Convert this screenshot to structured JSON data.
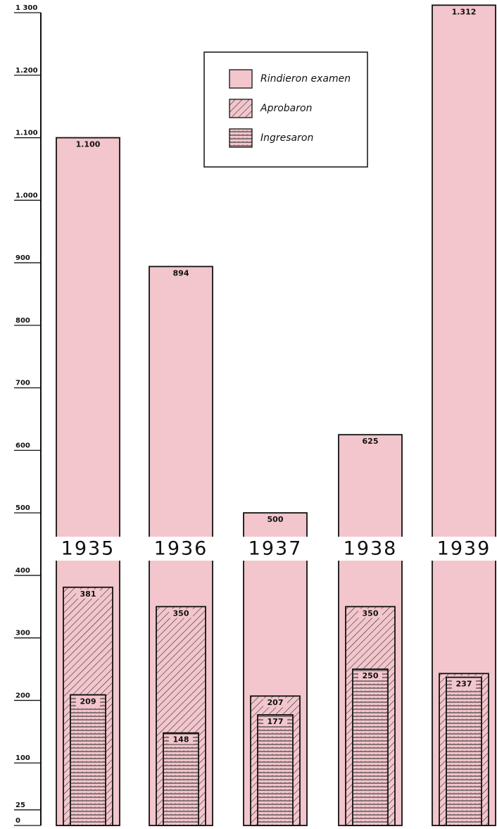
{
  "chart_data": {
    "type": "bar",
    "categories": [
      "1935",
      "1936",
      "1937",
      "1938",
      "1939"
    ],
    "series": [
      {
        "name": "Rindieron examen",
        "color": "#f2c6cc",
        "pattern": "solid",
        "values": [
          1100,
          894,
          500,
          625,
          1312
        ],
        "value_labels": [
          "1.100",
          "894",
          "500",
          "625",
          "1.312"
        ]
      },
      {
        "name": "Aprobaron",
        "color": "#f2c6cc",
        "pattern": "diagonal",
        "values": [
          381,
          350,
          207,
          350,
          243
        ]
      },
      {
        "name": "Ingresaron",
        "color": "#f2c6cc",
        "pattern": "horizontal",
        "values": [
          209,
          148,
          177,
          250,
          237
        ]
      }
    ],
    "ylim": [
      0,
      1300
    ],
    "yticks": [
      0,
      25,
      100,
      200,
      300,
      400,
      500,
      600,
      700,
      800,
      900,
      {
        "value": 1000,
        "label": "1.000"
      },
      {
        "value": 1100,
        "label": "1.100"
      },
      {
        "value": 1200,
        "label": "1.200"
      },
      {
        "value": 1300,
        "label": "1 300"
      }
    ]
  }
}
